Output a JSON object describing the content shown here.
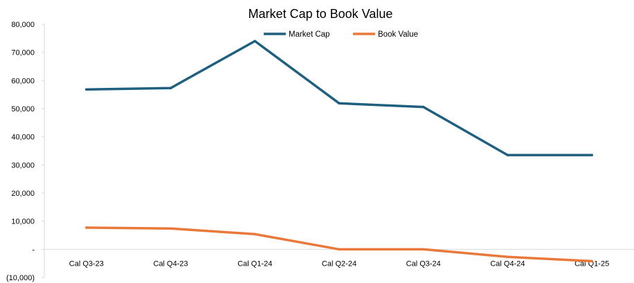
{
  "chart_data": {
    "type": "line",
    "title": "Market Cap to Book Value",
    "xlabel": "",
    "ylabel": "",
    "categories": [
      "Cal Q3-23",
      "Cal Q4-23",
      "Cal Q1-24",
      "Cal Q2-24",
      "Cal Q3-24",
      "Cal Q4-24",
      "Cal Q1-25"
    ],
    "ylim": [
      -10000,
      80000
    ],
    "y_ticks": [
      80000,
      70000,
      60000,
      50000,
      40000,
      30000,
      20000,
      10000,
      0,
      -10000
    ],
    "y_tick_labels": [
      "80,000",
      "70,000",
      "60,000",
      "50,000",
      "40,000",
      "30,000",
      "20,000",
      "10,000",
      "-",
      "(10,000)"
    ],
    "grid": false,
    "legend_position": "top-center",
    "series": [
      {
        "name": "Market Cap",
        "color": "#1f5f7f",
        "values": [
          56800,
          57300,
          74000,
          51900,
          50600,
          33500,
          33500
        ]
      },
      {
        "name": "Book Value",
        "color": "#e8793a",
        "values": [
          7700,
          7400,
          5400,
          0,
          0,
          -2700,
          -4200
        ]
      }
    ]
  }
}
